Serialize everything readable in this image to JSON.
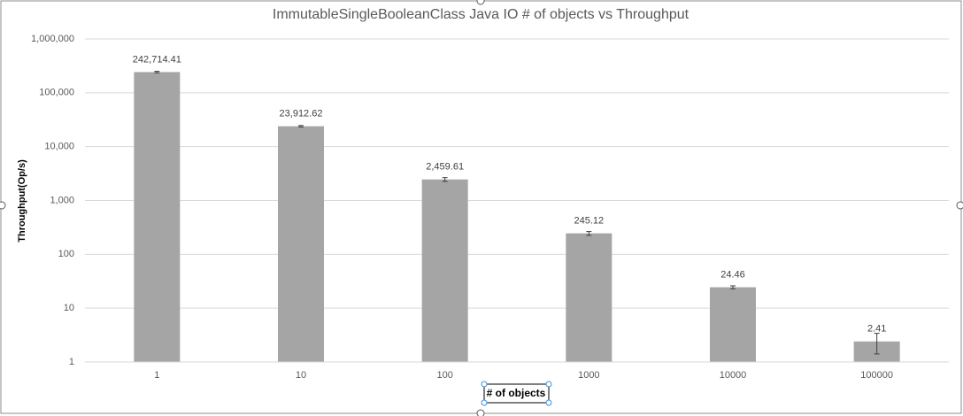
{
  "chart_data": {
    "type": "bar",
    "title": "ImmutableSingleBooleanClass Java IO # of objects vs Throughput",
    "x_label": "# of objects",
    "y_label": "Throughput(Op/s)",
    "categories": [
      "1",
      "10",
      "100",
      "1000",
      "10000",
      "100000"
    ],
    "values": [
      242714.41,
      23912.62,
      2459.61,
      245.12,
      24.46,
      2.41
    ],
    "value_labels": [
      "242,714.41",
      "23,912.62",
      "2,459.61",
      "245.12",
      "24.46",
      "2.41"
    ],
    "errors": [
      8000,
      800,
      200,
      20,
      1.5,
      1.0
    ],
    "color": "#a5a5a5",
    "log_scale": true,
    "ylim": [
      1,
      1000000
    ],
    "yticks": [
      1,
      10,
      100,
      {
        "value": 1000,
        "label": "1,000"
      },
      {
        "value": 10000,
        "label": "10,000"
      },
      {
        "value": 100000,
        "label": "100,000"
      },
      {
        "value": 1000000,
        "label": "1,000,000"
      }
    ],
    "grid": true
  }
}
